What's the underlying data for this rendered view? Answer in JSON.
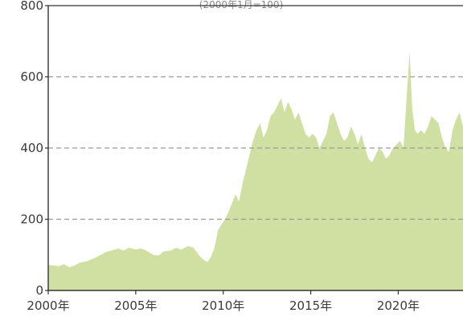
{
  "chart_data": {
    "type": "area",
    "title": "",
    "subtitle": "(2000年1月=100)",
    "xlabel": "",
    "ylabel": "",
    "xlim": [
      2000,
      2023.7
    ],
    "ylim": [
      0,
      800
    ],
    "grid": "horizontal-dashed",
    "fill_color": "#cfe0a2",
    "grid_color": "#9a9a9a",
    "axis_color": "#333333",
    "y_ticks": [
      {
        "value": 0,
        "label": "0"
      },
      {
        "value": 200,
        "label": "200"
      },
      {
        "value": 400,
        "label": "400"
      },
      {
        "value": 600,
        "label": "600"
      },
      {
        "value": 800,
        "label": "800"
      }
    ],
    "x_ticks": [
      {
        "value": 2000,
        "label": "2000年"
      },
      {
        "value": 2005,
        "label": "2005年"
      },
      {
        "value": 2010,
        "label": "2010年"
      },
      {
        "value": 2015,
        "label": "2015年"
      },
      {
        "value": 2020,
        "label": "2020年"
      }
    ],
    "series": [
      {
        "x": [
          2000,
          2000.3,
          2000.6,
          2000.9,
          2001.2,
          2001.5,
          2001.8,
          2002.2,
          2002.6,
          2003.0,
          2003.3,
          2003.6,
          2004.0,
          2004.3,
          2004.6,
          2005.0,
          2005.3,
          2005.6,
          2006.0,
          2006.3,
          2006.6,
          2007.0,
          2007.3,
          2007.6,
          2008.0,
          2008.3,
          2008.6,
          2008.9,
          2009.1,
          2009.3,
          2009.5,
          2009.7,
          2009.9,
          2010.1,
          2010.3,
          2010.5,
          2010.7,
          2010.9,
          2011.1,
          2011.3,
          2011.5,
          2011.7,
          2011.9,
          2012.1,
          2012.3,
          2012.5,
          2012.7,
          2012.9,
          2013.1,
          2013.3,
          2013.5,
          2013.7,
          2013.9,
          2014.1,
          2014.3,
          2014.5,
          2014.7,
          2014.9,
          2015.1,
          2015.3,
          2015.5,
          2015.7,
          2015.9,
          2016.1,
          2016.3,
          2016.5,
          2016.7,
          2016.9,
          2017.1,
          2017.3,
          2017.5,
          2017.7,
          2017.9,
          2018.1,
          2018.3,
          2018.5,
          2018.7,
          2018.9,
          2019.1,
          2019.3,
          2019.5,
          2019.7,
          2019.9,
          2020.1,
          2020.3,
          2020.5,
          2020.65,
          2020.8,
          2020.95,
          2021.1,
          2021.3,
          2021.5,
          2021.7,
          2021.9,
          2022.1,
          2022.3,
          2022.5,
          2022.7,
          2022.9,
          2023.1,
          2023.3,
          2023.5,
          2023.7
        ],
        "values": [
          72,
          70,
          68,
          74,
          65,
          70,
          78,
          82,
          90,
          100,
          108,
          112,
          118,
          112,
          120,
          115,
          118,
          112,
          100,
          98,
          110,
          112,
          120,
          115,
          125,
          120,
          100,
          85,
          80,
          95,
          120,
          170,
          185,
          200,
          220,
          245,
          270,
          250,
          300,
          340,
          380,
          420,
          450,
          470,
          430,
          450,
          490,
          500,
          520,
          540,
          500,
          530,
          510,
          480,
          500,
          470,
          440,
          430,
          440,
          430,
          400,
          420,
          440,
          490,
          500,
          470,
          440,
          420,
          430,
          460,
          440,
          410,
          440,
          400,
          370,
          360,
          380,
          400,
          390,
          370,
          380,
          400,
          410,
          420,
          400,
          560,
          670,
          510,
          450,
          440,
          450,
          440,
          460,
          490,
          480,
          470,
          430,
          400,
          390,
          450,
          480,
          500,
          460
        ]
      }
    ]
  }
}
